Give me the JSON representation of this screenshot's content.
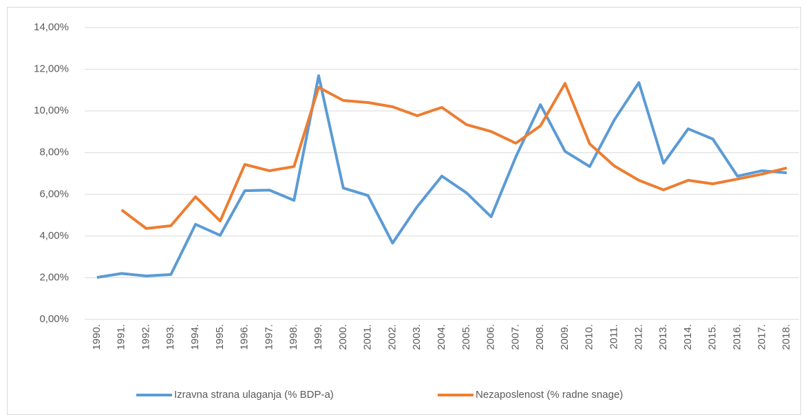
{
  "chart_data": {
    "type": "line",
    "categories": [
      "1990.",
      "1991.",
      "1992.",
      "1993.",
      "1994.",
      "1995.",
      "1996.",
      "1997.",
      "1998.",
      "1999.",
      "2000.",
      "2001.",
      "2002.",
      "2003.",
      "2004.",
      "2005.",
      "2006.",
      "2007.",
      "2008.",
      "2009.",
      "2010.",
      "2011.",
      "2012.",
      "2013.",
      "2014.",
      "2015.",
      "2016.",
      "2017.",
      "2018."
    ],
    "series": [
      {
        "name": "Izravna strana ulaganja (% BDP-a)",
        "color": "#5b9bd5",
        "values": [
          2.01,
          2.2,
          2.08,
          2.15,
          4.56,
          4.03,
          6.17,
          6.2,
          5.71,
          11.69,
          6.3,
          5.94,
          3.66,
          5.41,
          6.87,
          6.07,
          4.92,
          7.79,
          10.3,
          8.06,
          7.33,
          9.57,
          11.36,
          7.49,
          9.14,
          8.65,
          6.87,
          7.13,
          7.03
        ]
      },
      {
        "name": "Nezaposlenost (% radne snage)",
        "color": "#ed7d31",
        "values": [
          null,
          5.25,
          4.36,
          4.49,
          5.88,
          4.72,
          7.43,
          7.13,
          7.33,
          11.13,
          10.5,
          10.4,
          10.2,
          9.77,
          10.17,
          9.34,
          9.01,
          8.45,
          9.28,
          11.32,
          8.42,
          7.36,
          6.67,
          6.21,
          6.67,
          6.5,
          6.73,
          6.97,
          7.26
        ]
      }
    ],
    "ylim": [
      0,
      14
    ],
    "yticks": [
      {
        "value": 0,
        "label": "0,00%"
      },
      {
        "value": 2,
        "label": "2,00%"
      },
      {
        "value": 4,
        "label": "4,00%"
      },
      {
        "value": 6,
        "label": "6,00%"
      },
      {
        "value": 8,
        "label": "8,00%"
      },
      {
        "value": 10,
        "label": "10,00%"
      },
      {
        "value": 12,
        "label": "12,00%"
      },
      {
        "value": 14,
        "label": "14,00%"
      }
    ],
    "grid": true,
    "legend": "bottom"
  }
}
